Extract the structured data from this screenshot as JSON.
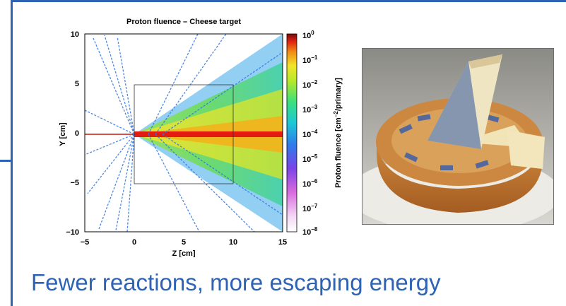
{
  "slide": {
    "caption": "Fewer reactions, more escaping energy",
    "caption_color": "#2e63b4",
    "frame_color": "#2e63b4"
  },
  "plot": {
    "title": "Proton fluence – Cheese target",
    "xlabel": "Z [cm]",
    "ylabel": "Y [cm]",
    "x_ticks": [
      "−5",
      "0",
      "5",
      "10",
      "15"
    ],
    "y_ticks": [
      "10",
      "5",
      "0",
      "−5",
      "−10"
    ],
    "colorbar": {
      "label_main": "Proton fluence [cm",
      "label_sup": "−2",
      "label_tail": "/primary]",
      "ticks": [
        {
          "base": "10",
          "exp": "0"
        },
        {
          "base": "10",
          "exp": "−1"
        },
        {
          "base": "10",
          "exp": "−2"
        },
        {
          "base": "10",
          "exp": "−3"
        },
        {
          "base": "10",
          "exp": "−4"
        },
        {
          "base": "10",
          "exp": "−5"
        },
        {
          "base": "10",
          "exp": "−6"
        },
        {
          "base": "10",
          "exp": "−7"
        },
        {
          "base": "10",
          "exp": "−8"
        }
      ]
    }
  },
  "photo": {
    "label": "cheese wheel photo"
  },
  "chart_data": {
    "type": "heatmap",
    "title": "Proton fluence – Cheese target",
    "xlabel": "Z [cm]",
    "ylabel": "Y [cm]",
    "xlim": [
      -5,
      15
    ],
    "ylim": [
      -10,
      10
    ],
    "colorbar_label": "Proton fluence [cm−2/primary]",
    "colorbar_range": [
      1e-08,
      1
    ],
    "colorbar_scale": "log",
    "target_box": {
      "z": [
        0,
        10
      ],
      "y": [
        -5,
        5
      ]
    },
    "beam_axis_y": 0
  }
}
